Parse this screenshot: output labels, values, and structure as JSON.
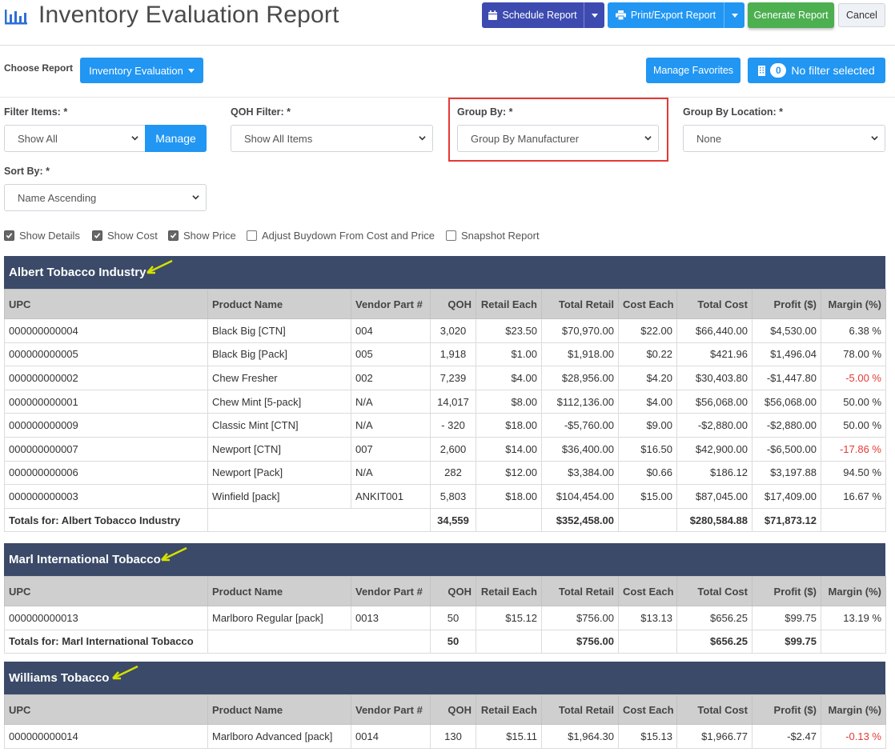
{
  "header": {
    "title": "Inventory Evaluation Report",
    "schedule_label": "Schedule Report",
    "print_label": "Print/Export Report",
    "generate_label": "Generate Report",
    "cancel_label": "Cancel"
  },
  "report_row": {
    "choose_label": "Choose Report",
    "report_selected": "Inventory Evaluation",
    "favorites_label": "Manage Favorites",
    "filter_count": "0",
    "filter_text": "No filter selected"
  },
  "filters": {
    "filter_items": {
      "label": "Filter Items: *",
      "value": "Show All",
      "manage_label": "Manage"
    },
    "qoh_filter": {
      "label": "QOH Filter: *",
      "value": "Show All Items"
    },
    "group_by": {
      "label": "Group By: *",
      "value": "Group By Manufacturer"
    },
    "group_by_location": {
      "label": "Group By Location: *",
      "value": "None"
    },
    "sort_by": {
      "label": "Sort By: *",
      "value": "Name Ascending"
    }
  },
  "options": [
    {
      "label": "Show Details",
      "checked": true
    },
    {
      "label": "Show Cost",
      "checked": true
    },
    {
      "label": "Show Price",
      "checked": true
    },
    {
      "label": "Adjust Buydown From Cost and Price",
      "checked": false
    },
    {
      "label": "Snapshot Report",
      "checked": false
    }
  ],
  "columns": [
    "UPC",
    "Product Name",
    "Vendor Part #",
    "QOH",
    "Retail Each",
    "Total Retail",
    "Cost Each",
    "Total Cost",
    "Profit ($)",
    "Margin (%)"
  ],
  "groups": [
    {
      "name": "Albert Tobacco Industry",
      "rows": [
        [
          "000000000004",
          "Black Big [CTN]",
          "004",
          "3,020",
          "$23.50",
          "$70,970.00",
          "$22.00",
          "$66,440.00",
          "$4,530.00",
          "6.38 %"
        ],
        [
          "000000000005",
          "Black Big [Pack]",
          "005",
          "1,918",
          "$1.00",
          "$1,918.00",
          "$0.22",
          "$421.96",
          "$1,496.04",
          "78.00 %"
        ],
        [
          "000000000002",
          "Chew Fresher",
          "002",
          "7,239",
          "$4.00",
          "$28,956.00",
          "$4.20",
          "$30,403.80",
          "-$1,447.80",
          "-5.00 %"
        ],
        [
          "000000000001",
          "Chew Mint [5-pack]",
          "N/A",
          "14,017",
          "$8.00",
          "$112,136.00",
          "$4.00",
          "$56,068.00",
          "$56,068.00",
          "50.00 %"
        ],
        [
          "000000000009",
          "Classic Mint [CTN]",
          "N/A",
          "- 320",
          "$18.00",
          "-$5,760.00",
          "$9.00",
          "-$2,880.00",
          "-$2,880.00",
          "50.00 %"
        ],
        [
          "000000000007",
          "Newport [CTN]",
          "007",
          "2,600",
          "$14.00",
          "$36,400.00",
          "$16.50",
          "$42,900.00",
          "-$6,500.00",
          "-17.86 %"
        ],
        [
          "000000000006",
          "Newport [Pack]",
          "N/A",
          "282",
          "$12.00",
          "$3,384.00",
          "$0.66",
          "$186.12",
          "$3,197.88",
          "94.50 %"
        ],
        [
          "000000000003",
          "Winfield [pack]",
          "ANKIT001",
          "5,803",
          "$18.00",
          "$104,454.00",
          "$15.00",
          "$87,045.00",
          "$17,409.00",
          "16.67 %"
        ]
      ],
      "totals": {
        "label": "Totals for: Albert Tobacco Industry",
        "qoh": "34,559",
        "total_retail": "$352,458.00",
        "total_cost": "$280,584.88",
        "profit": "$71,873.12"
      }
    },
    {
      "name": "Marl International Tobacco",
      "rows": [
        [
          "000000000013",
          "Marlboro Regular [pack]",
          "0013",
          "50",
          "$15.12",
          "$756.00",
          "$13.13",
          "$656.25",
          "$99.75",
          "13.19 %"
        ]
      ],
      "totals": {
        "label": "Totals for: Marl International Tobacco",
        "qoh": "50",
        "total_retail": "$756.00",
        "total_cost": "$656.25",
        "profit": "$99.75"
      }
    },
    {
      "name": "Williams Tobacco",
      "rows": [
        [
          "000000000014",
          "Marlboro Advanced [pack]",
          "0014",
          "130",
          "$15.11",
          "$1,964.30",
          "$15.13",
          "$1,966.77",
          "-$2.47",
          "-0.13 %"
        ]
      ]
    }
  ],
  "colors": {
    "primary": "#2196f3",
    "schedule": "#3d4bb0",
    "generate": "#4caf50",
    "group_header": "#3a4a68",
    "negative": "#e53935",
    "annotation_arrow": "#d4e000"
  }
}
